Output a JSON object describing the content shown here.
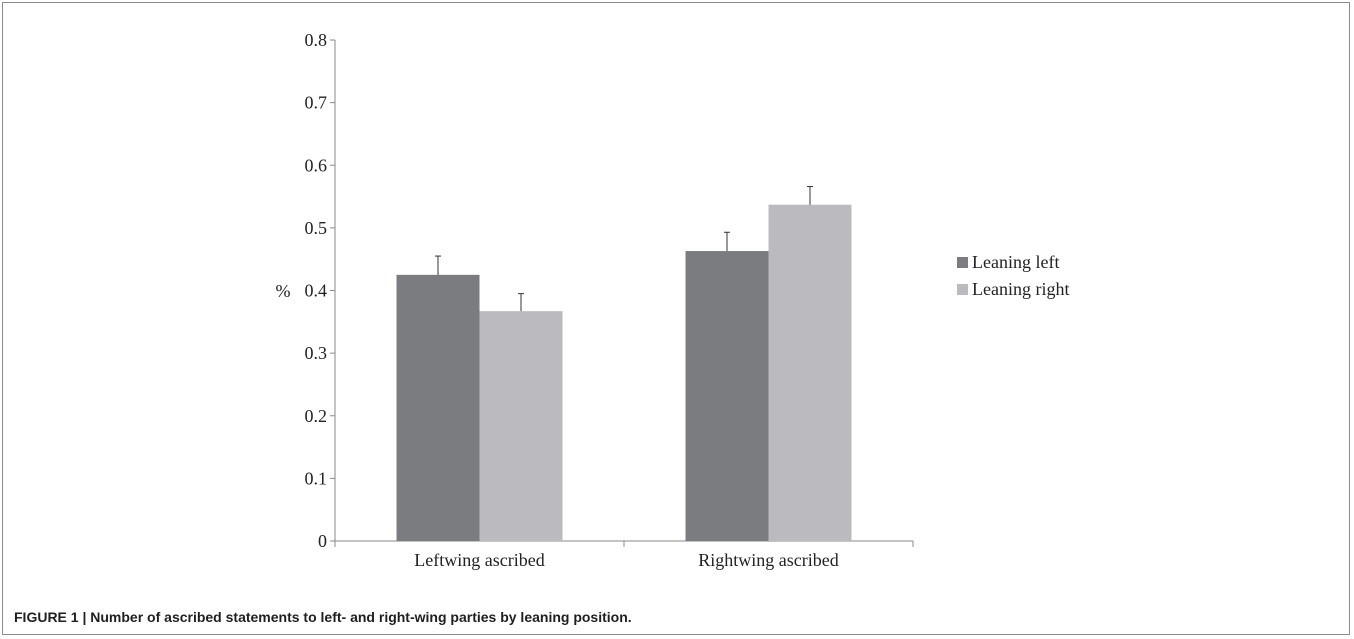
{
  "caption": "FIGURE 1 | Number of ascribed statements to left- and right-wing parties by leaning position.",
  "chart_data": {
    "type": "bar",
    "ylabel": "%",
    "xlabel": "",
    "ylim": [
      0,
      0.8
    ],
    "yticks": [
      "0",
      "0.1",
      "0.2",
      "0.3",
      "0.4",
      "0.5",
      "0.6",
      "0.7",
      "0.8"
    ],
    "categories": [
      "Leftwing ascribed",
      "Rightwing ascribed"
    ],
    "series": [
      {
        "name": "Leaning left",
        "values": [
          0.425,
          0.463
        ],
        "errors": [
          0.03,
          0.03
        ],
        "color": "#7b7c80"
      },
      {
        "name": "Leaning right",
        "values": [
          0.367,
          0.537
        ],
        "errors": [
          0.028,
          0.029
        ],
        "color": "#bbbbbf"
      }
    ],
    "legend_position": "right",
    "grid": false
  }
}
